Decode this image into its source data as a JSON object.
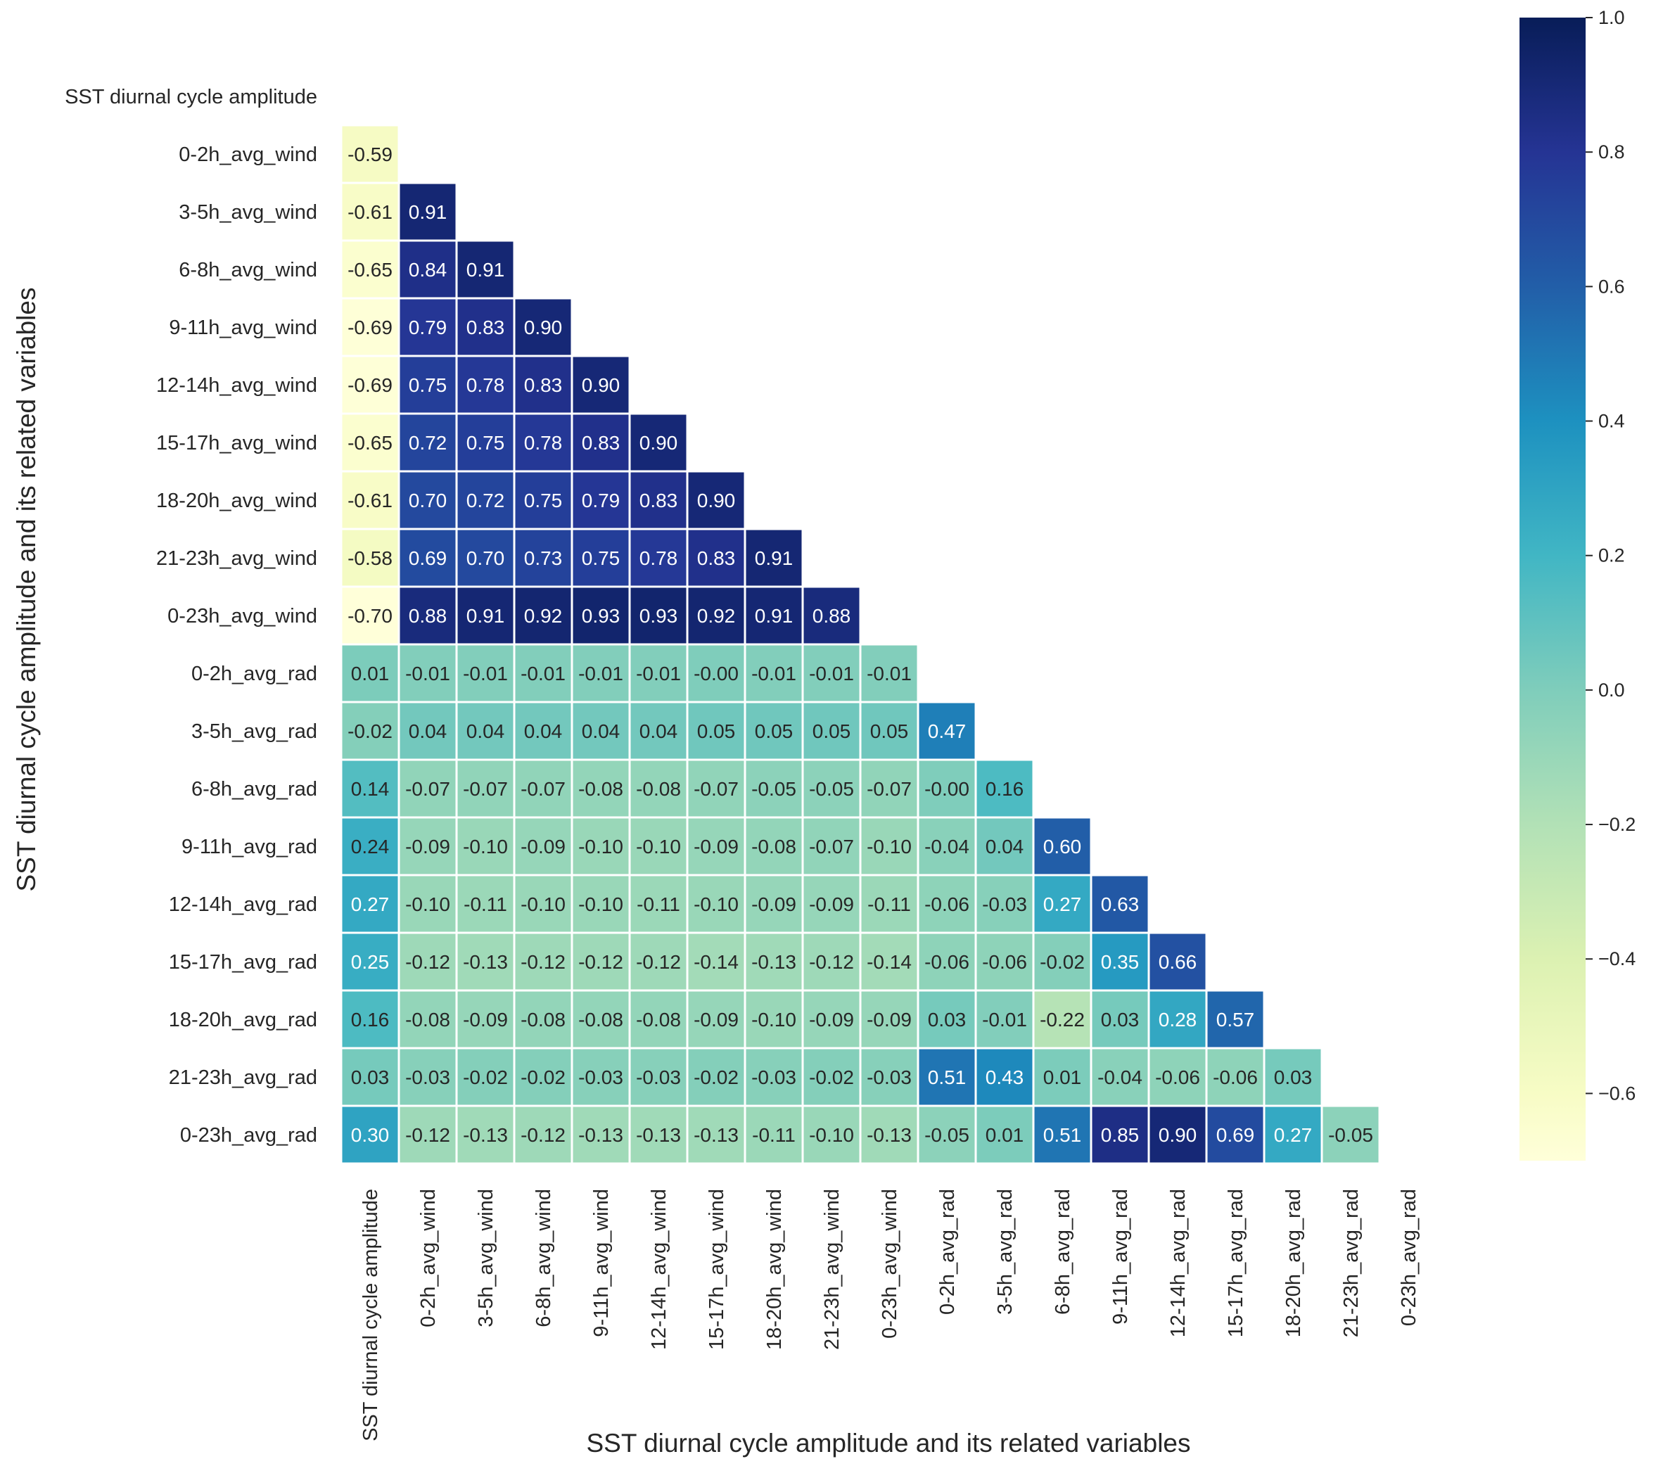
{
  "chart_data": {
    "type": "heatmap",
    "colormap": "YlGnBu",
    "xlabel": "SST diurnal cycle amplitude and its related variables",
    "ylabel": "SST diurnal cycle amplitude and its related variables",
    "labels": [
      "SST diurnal cycle amplitude",
      "0-2h_avg_wind",
      "3-5h_avg_wind",
      "6-8h_avg_wind",
      "9-11h_avg_wind",
      "12-14h_avg_wind",
      "15-17h_avg_wind",
      "18-20h_avg_wind",
      "21-23h_avg_wind",
      "0-23h_avg_wind",
      "0-2h_avg_rad",
      "3-5h_avg_rad",
      "6-8h_avg_rad",
      "9-11h_avg_rad",
      "12-14h_avg_rad",
      "15-17h_avg_rad",
      "18-20h_avg_rad",
      "21-23h_avg_rad",
      "0-23h_avg_rad"
    ],
    "matrix_lower": [
      [],
      [
        "-0.59"
      ],
      [
        "-0.61",
        "0.91"
      ],
      [
        "-0.65",
        "0.84",
        "0.91"
      ],
      [
        "-0.69",
        "0.79",
        "0.83",
        "0.90"
      ],
      [
        "-0.69",
        "0.75",
        "0.78",
        "0.83",
        "0.90"
      ],
      [
        "-0.65",
        "0.72",
        "0.75",
        "0.78",
        "0.83",
        "0.90"
      ],
      [
        "-0.61",
        "0.70",
        "0.72",
        "0.75",
        "0.79",
        "0.83",
        "0.90"
      ],
      [
        "-0.58",
        "0.69",
        "0.70",
        "0.73",
        "0.75",
        "0.78",
        "0.83",
        "0.91"
      ],
      [
        "-0.70",
        "0.88",
        "0.91",
        "0.92",
        "0.93",
        "0.93",
        "0.92",
        "0.91",
        "0.88"
      ],
      [
        "0.01",
        "-0.01",
        "-0.01",
        "-0.01",
        "-0.01",
        "-0.01",
        "-0.00",
        "-0.01",
        "-0.01",
        "-0.01"
      ],
      [
        "-0.02",
        "0.04",
        "0.04",
        "0.04",
        "0.04",
        "0.04",
        "0.05",
        "0.05",
        "0.05",
        "0.05",
        "0.47"
      ],
      [
        "0.14",
        "-0.07",
        "-0.07",
        "-0.07",
        "-0.08",
        "-0.08",
        "-0.07",
        "-0.05",
        "-0.05",
        "-0.07",
        "-0.00",
        "0.16"
      ],
      [
        "0.24",
        "-0.09",
        "-0.10",
        "-0.09",
        "-0.10",
        "-0.10",
        "-0.09",
        "-0.08",
        "-0.07",
        "-0.10",
        "-0.04",
        "0.04",
        "0.60"
      ],
      [
        "0.27",
        "-0.10",
        "-0.11",
        "-0.10",
        "-0.10",
        "-0.11",
        "-0.10",
        "-0.09",
        "-0.09",
        "-0.11",
        "-0.06",
        "-0.03",
        "0.27",
        "0.63"
      ],
      [
        "0.25",
        "-0.12",
        "-0.13",
        "-0.12",
        "-0.12",
        "-0.12",
        "-0.14",
        "-0.13",
        "-0.12",
        "-0.14",
        "-0.06",
        "-0.06",
        "-0.02",
        "0.35",
        "0.66"
      ],
      [
        "0.16",
        "-0.08",
        "-0.09",
        "-0.08",
        "-0.08",
        "-0.08",
        "-0.09",
        "-0.10",
        "-0.09",
        "-0.09",
        "0.03",
        "-0.01",
        "-0.22",
        "0.03",
        "0.28",
        "0.57"
      ],
      [
        "0.03",
        "-0.03",
        "-0.02",
        "-0.02",
        "-0.03",
        "-0.03",
        "-0.02",
        "-0.03",
        "-0.02",
        "-0.03",
        "0.51",
        "0.43",
        "0.01",
        "-0.04",
        "-0.06",
        "-0.06",
        "0.03"
      ],
      [
        "0.30",
        "-0.12",
        "-0.13",
        "-0.12",
        "-0.13",
        "-0.13",
        "-0.13",
        "-0.11",
        "-0.10",
        "-0.13",
        "-0.05",
        "0.01",
        "0.51",
        "0.85",
        "0.90",
        "0.69",
        "0.27",
        "-0.05"
      ]
    ],
    "vmin": -0.7,
    "vmax": 1.0,
    "colorbar": {
      "ticks": [
        1.0,
        0.8,
        0.6,
        0.4,
        0.2,
        0.0,
        -0.2,
        -0.4,
        -0.6
      ],
      "tick_labels": [
        "1.0",
        "0.8",
        "0.6",
        "0.4",
        "0.2",
        "0.0",
        "−0.2",
        "−0.4",
        "−0.6"
      ]
    },
    "mask": "upper triangle including diagonal",
    "grid_lines": "white"
  }
}
